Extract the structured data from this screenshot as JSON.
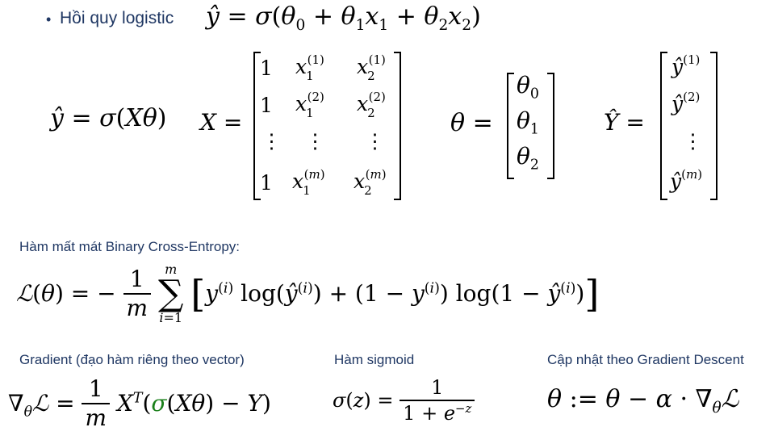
{
  "header": {
    "bullet": "•",
    "title": "Hồi quy logistic",
    "equation": "ŷ = σ(θ₀ + θ₁x₁ + θ₂x₂)"
  },
  "matrices": {
    "prediction": "ŷ = σ(Xθ)",
    "x_label": "X =",
    "x_rows": [
      [
        "1",
        "x₁⁽¹⁾",
        "x₂⁽¹⁾"
      ],
      [
        "1",
        "x₁⁽²⁾",
        "x₂⁽²⁾"
      ],
      [
        "⋮",
        "⋮",
        "⋮"
      ],
      [
        "1",
        "x₁⁽ᵐ⁾",
        "x₂⁽ᵐ⁾"
      ]
    ],
    "theta_label": "θ =",
    "theta_rows": [
      "θ₀",
      "θ₁",
      "θ₂"
    ],
    "y_label": "Ŷ =",
    "y_rows": [
      "ŷ⁽¹⁾",
      "ŷ⁽²⁾",
      "⋮",
      "ŷ⁽ᵐ⁾"
    ]
  },
  "loss": {
    "label": "Hàm mất mát Binary Cross-Entropy:",
    "equation": "ℒ(θ) = −(1/m) Σ_{i=1}^{m} [ y⁽ⁱ⁾ log(ŷ⁽ⁱ⁾) + (1 − y⁽ⁱ⁾) log(1 − ŷ⁽ⁱ⁾) ]"
  },
  "gradient": {
    "label": "Gradient (đạo hàm riêng theo vector)",
    "equation": "∇θℒ = (1/m) Xᵀ(σ(Xθ) − Y)"
  },
  "sigmoid": {
    "label": "Hàm sigmoid",
    "equation": "σ(z) = 1 / (1 + e⁻ᶻ)"
  },
  "update": {
    "label": "Cập nhật theo Gradient Descent",
    "equation": "θ := θ − α · ∇θℒ"
  },
  "colors": {
    "heading": "#1f3763",
    "accent_green": "#1a7f1a"
  }
}
